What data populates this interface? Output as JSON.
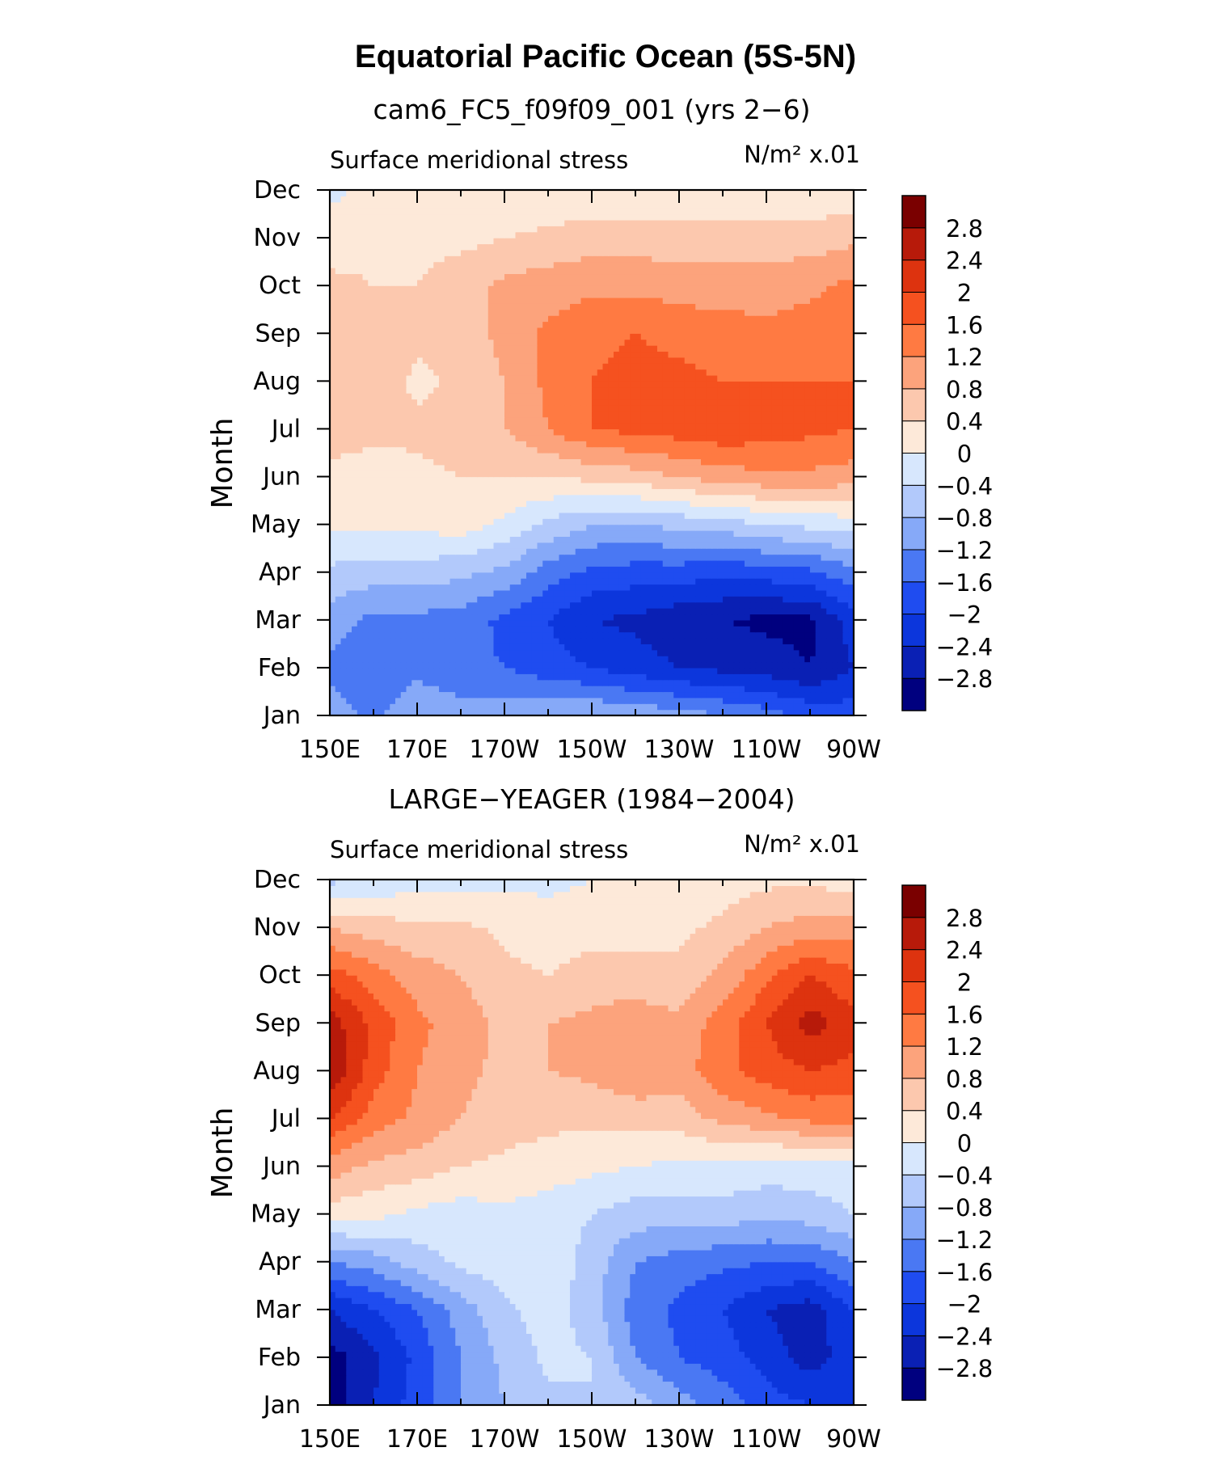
{
  "figure": {
    "title": "Equatorial Pacific Ocean (5S-5N)"
  },
  "colorbar": {
    "levels": [
      -2.8,
      -2.4,
      -2,
      -1.6,
      -1.2,
      -0.8,
      -0.4,
      0,
      0.4,
      0.8,
      1.2,
      1.6,
      2,
      2.4,
      2.8
    ],
    "labels": [
      "−2.8",
      "−2.4",
      "−2",
      "−1.6",
      "−1.2",
      "−0.8",
      "−0.4",
      "0",
      "0.4",
      "0.8",
      "1.2",
      "1.6",
      "2",
      "2.4",
      "2.8"
    ],
    "colors": [
      "#00007f",
      "#0a20b4",
      "#0c36dc",
      "#1f4cf0",
      "#4a78f3",
      "#86a9f8",
      "#b2c9fb",
      "#d7e7fd",
      "#fde9d9",
      "#fcc8ae",
      "#fca37c",
      "#ff7a42",
      "#f5511f",
      "#dd330f",
      "#b71a0a",
      "#7a0000"
    ]
  },
  "chart_data": [
    {
      "type": "heatmap",
      "title": "cam6_FC5_f09f09_001 (yrs 2−6)",
      "left_label": "Surface meridional stress",
      "units_label": "N/m² x.01",
      "ylabel": "Month",
      "xlabel": "",
      "x_ticks": [
        "150E",
        "170E",
        "170W",
        "150W",
        "130W",
        "110W",
        "90W"
      ],
      "y_ticks": [
        "Jan",
        "Feb",
        "Mar",
        "Apr",
        "May",
        "Jun",
        "Jul",
        "Aug",
        "Sep",
        "Oct",
        "Nov",
        "Dec"
      ],
      "x": [
        150,
        160,
        170,
        180,
        190,
        200,
        210,
        220,
        230,
        240,
        250,
        260,
        270
      ],
      "y": [
        1,
        2,
        3,
        4,
        5,
        6,
        7,
        8,
        9,
        10,
        11,
        12
      ],
      "xlim": [
        150,
        270
      ],
      "ylim": [
        1,
        12
      ],
      "z": [
        [
          -1.0,
          -1.3,
          -0.9,
          -1.0,
          -1.0,
          -0.9,
          -0.8,
          -0.9,
          -1.0,
          -1.2,
          -1.4,
          -1.7,
          -1.8
        ],
        [
          -1.3,
          -1.6,
          -1.3,
          -1.5,
          -1.6,
          -1.8,
          -2.0,
          -2.2,
          -2.4,
          -2.5,
          -2.6,
          -2.8,
          -2.4
        ],
        [
          -1.0,
          -1.3,
          -1.3,
          -1.4,
          -1.7,
          -2.0,
          -2.4,
          -2.5,
          -2.7,
          -2.8,
          -2.9,
          -2.9,
          -2.2
        ],
        [
          -0.5,
          -0.6,
          -0.6,
          -0.7,
          -0.9,
          -1.4,
          -1.7,
          -1.8,
          -1.8,
          -1.9,
          -1.8,
          -1.7,
          -1.3
        ],
        [
          0.1,
          0.1,
          0.1,
          0.2,
          -0.1,
          -0.5,
          -0.8,
          -0.8,
          -0.7,
          -0.6,
          -0.4,
          -0.3,
          -0.2
        ],
        [
          0.3,
          0.2,
          0.3,
          0.4,
          0.4,
          0.4,
          0.5,
          0.6,
          0.8,
          1.0,
          1.1,
          1.1,
          1.0
        ],
        [
          0.6,
          0.5,
          0.5,
          0.6,
          0.8,
          1.2,
          1.6,
          1.7,
          1.8,
          1.9,
          1.8,
          1.7,
          1.6
        ],
        [
          0.8,
          0.7,
          0.3,
          0.5,
          0.8,
          1.3,
          1.6,
          1.7,
          1.7,
          1.6,
          1.6,
          1.6,
          1.6
        ],
        [
          0.7,
          0.6,
          0.5,
          0.6,
          0.9,
          1.3,
          1.5,
          1.6,
          1.5,
          1.4,
          1.3,
          1.4,
          1.5
        ],
        [
          0.5,
          0.4,
          0.4,
          0.6,
          0.9,
          1.0,
          1.1,
          1.1,
          1.0,
          1.0,
          1.0,
          1.1,
          1.3
        ],
        [
          0.2,
          0.3,
          0.3,
          0.3,
          0.4,
          0.5,
          0.6,
          0.6,
          0.6,
          0.6,
          0.6,
          0.6,
          0.7
        ],
        [
          -0.1,
          0.1,
          0.1,
          0.1,
          0.1,
          0.1,
          0.1,
          0.1,
          0.1,
          0.1,
          0.1,
          0.1,
          0.1
        ]
      ]
    },
    {
      "type": "heatmap",
      "title": "LARGE−YEAGER (1984−2004)",
      "left_label": "Surface meridional stress",
      "units_label": "N/m² x.01",
      "ylabel": "Month",
      "xlabel": "",
      "x_ticks": [
        "150E",
        "170E",
        "170W",
        "150W",
        "130W",
        "110W",
        "90W"
      ],
      "y_ticks": [
        "Jan",
        "Feb",
        "Mar",
        "Apr",
        "May",
        "Jun",
        "Jul",
        "Aug",
        "Sep",
        "Oct",
        "Nov",
        "Dec"
      ],
      "x": [
        150,
        160,
        170,
        180,
        190,
        200,
        210,
        220,
        230,
        240,
        250,
        260,
        270
      ],
      "y": [
        1,
        2,
        3,
        4,
        5,
        6,
        7,
        8,
        9,
        10,
        11,
        12
      ],
      "xlim": [
        150,
        270
      ],
      "ylim": [
        1,
        12
      ],
      "z": [
        [
          -3.0,
          -2.4,
          -1.8,
          -1.2,
          -0.8,
          -0.5,
          -0.4,
          -0.6,
          -1.0,
          -1.4,
          -1.8,
          -2.0,
          -2.0
        ],
        [
          -3.0,
          -2.5,
          -1.9,
          -1.2,
          -0.7,
          -0.3,
          -0.4,
          -1.2,
          -1.6,
          -1.8,
          -2.2,
          -2.6,
          -2.2
        ],
        [
          -2.4,
          -2.0,
          -1.6,
          -1.0,
          -0.5,
          -0.2,
          -0.6,
          -1.4,
          -1.7,
          -2.0,
          -2.4,
          -2.6,
          -2.0
        ],
        [
          -1.2,
          -1.0,
          -0.6,
          -0.3,
          -0.2,
          -0.1,
          -0.6,
          -1.2,
          -1.4,
          -1.5,
          -1.6,
          -1.6,
          -1.2
        ],
        [
          0.2,
          0.1,
          -0.1,
          -0.2,
          -0.1,
          -0.2,
          -0.4,
          -0.6,
          -0.6,
          -0.6,
          -0.7,
          -0.6,
          -0.4
        ],
        [
          1.0,
          0.7,
          0.6,
          0.4,
          0.3,
          0.2,
          0.1,
          0.0,
          -0.1,
          -0.1,
          -0.2,
          -0.2,
          -0.1
        ],
        [
          2.0,
          1.4,
          1.1,
          0.8,
          0.6,
          0.5,
          0.5,
          0.5,
          0.6,
          0.9,
          1.1,
          1.3,
          1.3
        ],
        [
          2.8,
          1.8,
          1.2,
          0.9,
          0.7,
          0.8,
          0.9,
          1.2,
          1.0,
          1.5,
          1.8,
          2.0,
          1.9
        ],
        [
          2.6,
          1.9,
          1.3,
          1.0,
          0.7,
          0.8,
          0.9,
          1.0,
          0.9,
          1.4,
          2.0,
          2.6,
          2.1
        ],
        [
          1.8,
          1.4,
          1.0,
          0.8,
          0.5,
          0.4,
          0.6,
          0.6,
          0.5,
          0.9,
          1.5,
          2.0,
          1.7
        ],
        [
          0.8,
          0.6,
          0.5,
          0.5,
          0.3,
          0.2,
          0.2,
          0.2,
          0.3,
          0.5,
          0.8,
          1.0,
          1.0
        ],
        [
          -0.5,
          -0.3,
          -0.2,
          -0.2,
          -0.1,
          -0.1,
          0.0,
          0.1,
          0.1,
          0.2,
          0.3,
          0.3,
          0.2
        ]
      ]
    }
  ]
}
